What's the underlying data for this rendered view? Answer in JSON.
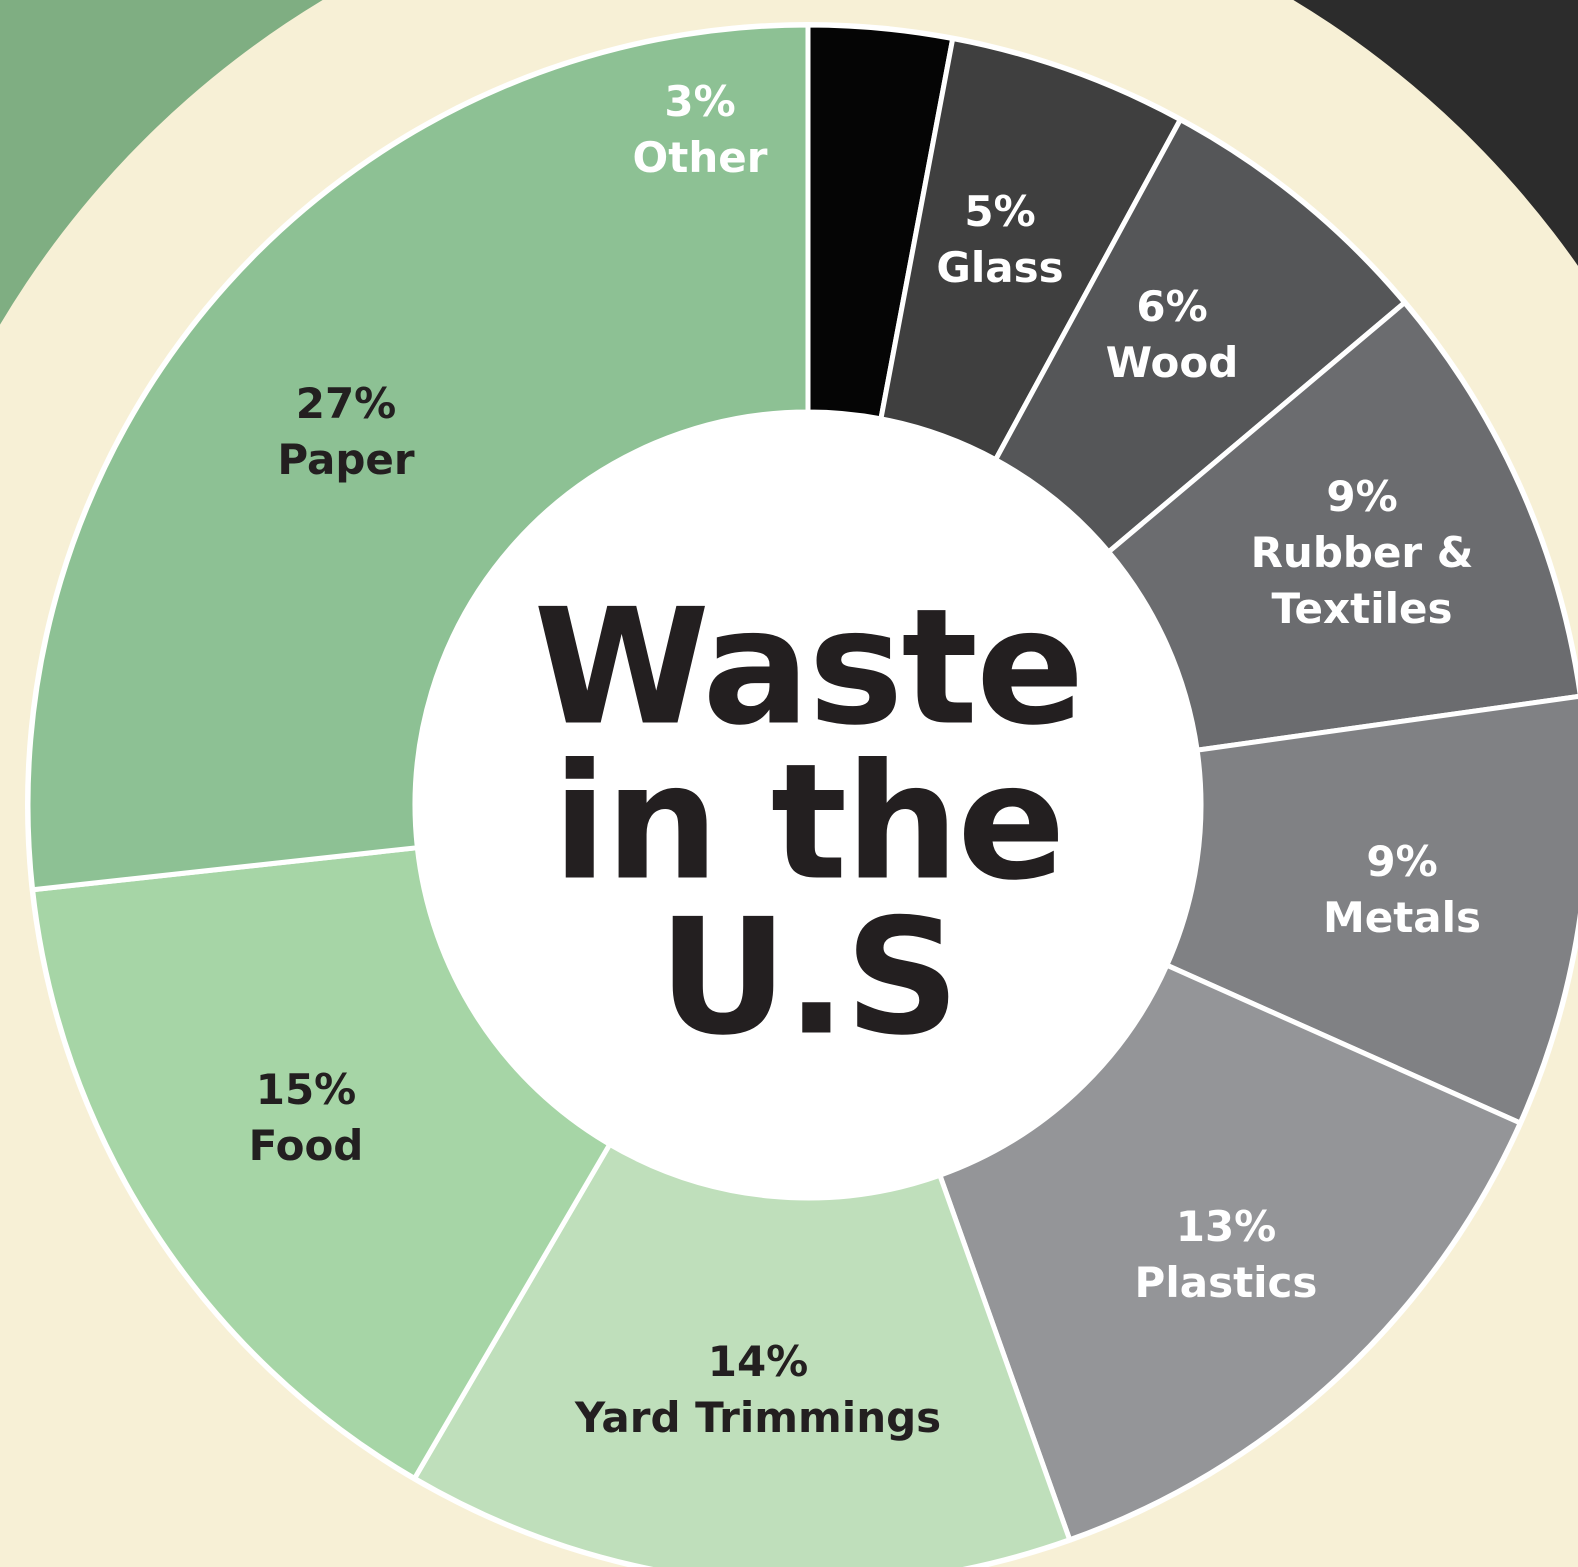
{
  "chart_data": {
    "type": "pie",
    "donut": true,
    "title": "Waste in the U.S",
    "categories": [
      "Other",
      "Glass",
      "Wood",
      "Rubber & Textiles",
      "Metals",
      "Plastics",
      "Yard Trimmings",
      "Food",
      "Paper"
    ],
    "values": [
      3,
      5,
      6,
      9,
      9,
      13,
      14,
      15,
      27
    ],
    "value_labels": [
      "3%",
      "5%",
      "6%",
      "9%",
      "9%",
      "13%",
      "14%",
      "15%",
      "27%"
    ],
    "colors": [
      "#050505",
      "#3f3f3f",
      "#555658",
      "#6b6c6f",
      "#808184",
      "#949598",
      "#bfdfbb",
      "#a6d5a6",
      "#8dc194"
    ]
  }
}
